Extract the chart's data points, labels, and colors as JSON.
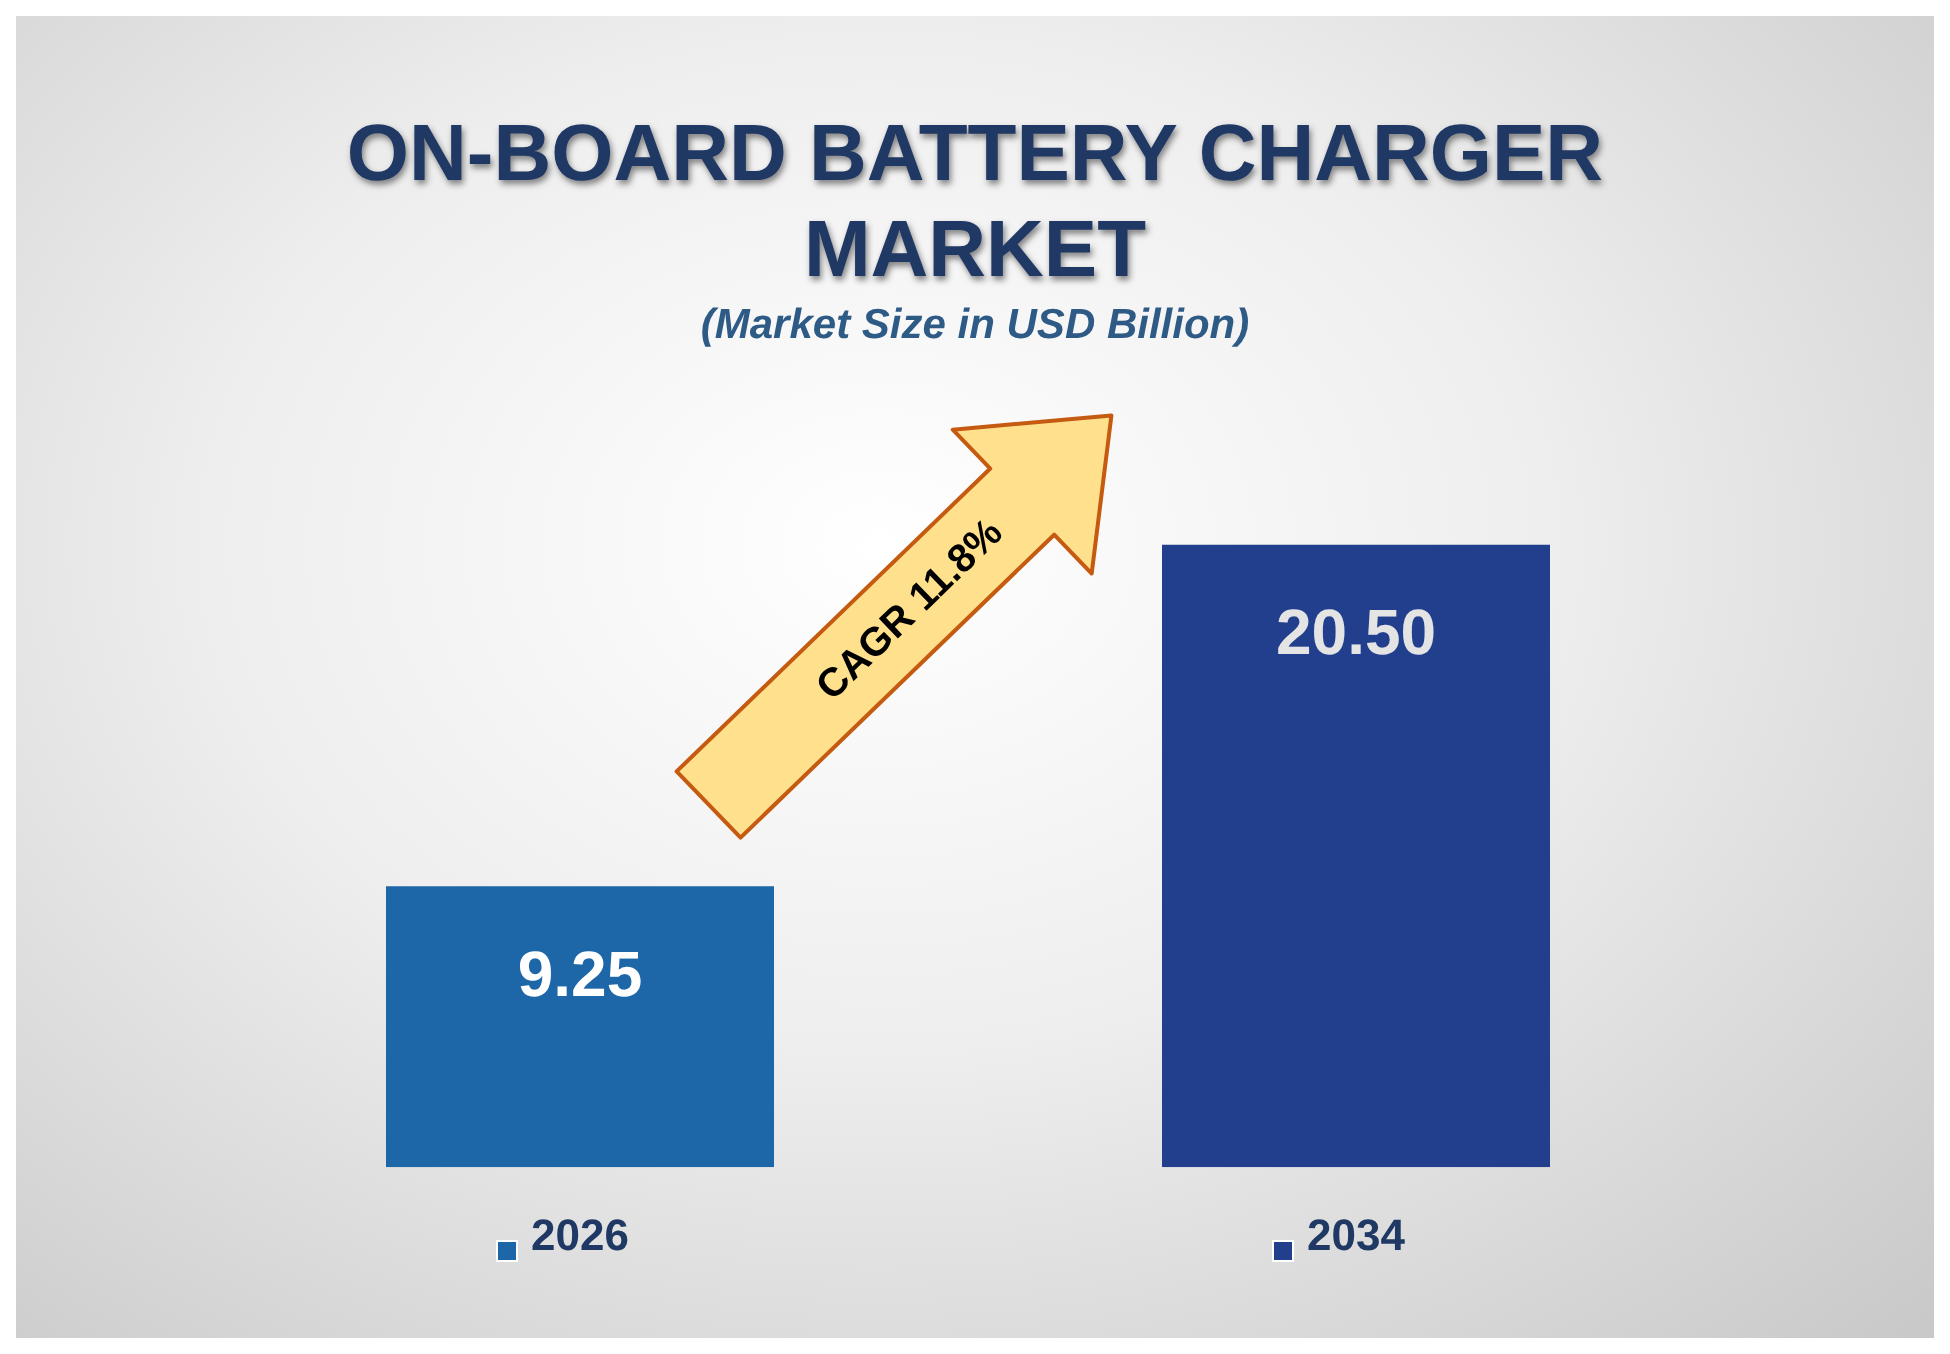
{
  "chart_data": {
    "type": "bar",
    "title": "ON-BOARD BATTERY CHARGER MARKET",
    "subtitle": "(Market Size in USD Billion)",
    "categories": [
      "2026",
      "2034"
    ],
    "values": [
      9.25,
      20.5
    ],
    "colors": [
      "#1d66a8",
      "#213f8c"
    ],
    "value_labels": [
      "9.25",
      "20.50"
    ],
    "annotations": [
      "CAGR 11.8%"
    ],
    "grid": false
  }
}
